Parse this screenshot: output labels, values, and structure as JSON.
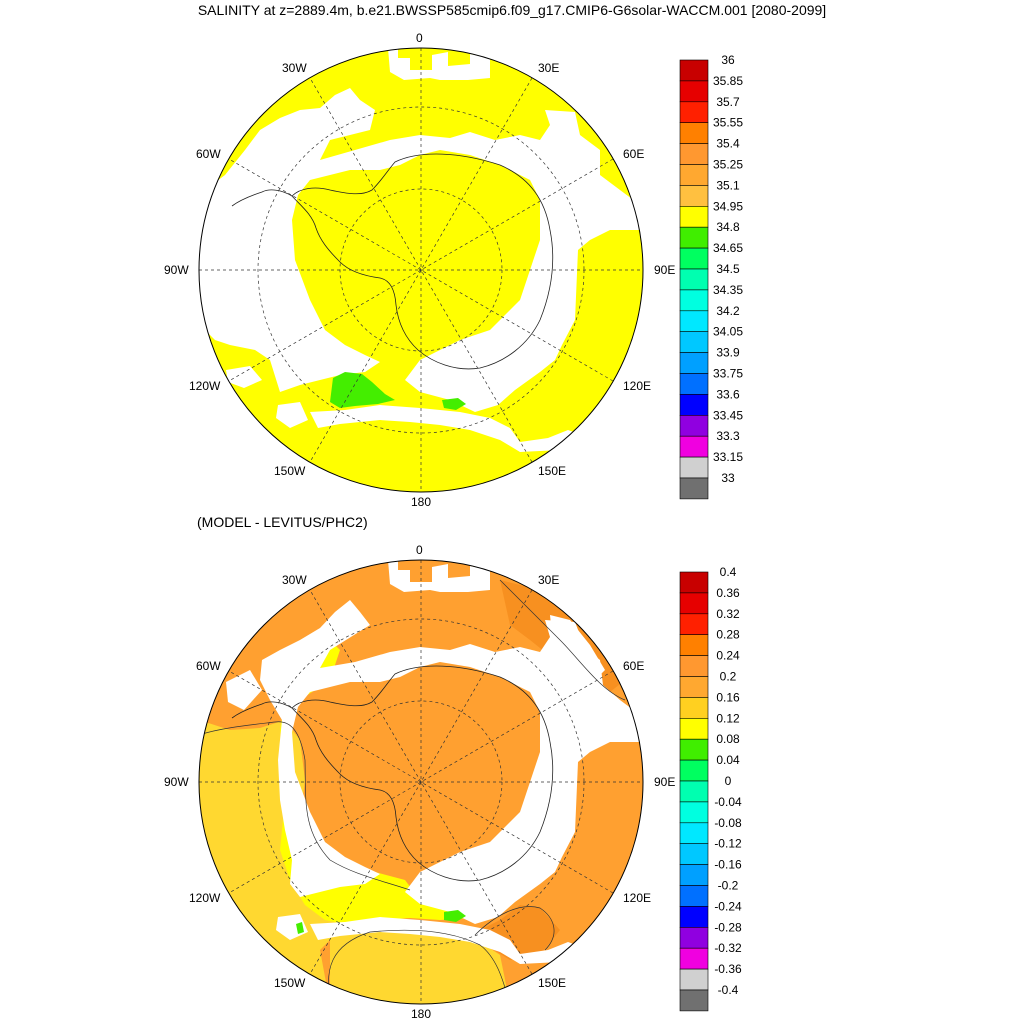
{
  "page_title": "SALINITY at z=2889.4m, b.e21.BWSSP585cmip6.f09_g17.CMIP6-G6solar-WACCM.001 [2080-2099]",
  "panel_bottom_title": "(MODEL - LEVITUS/PHC2)",
  "map_labels": [
    "0",
    "30E",
    "60E",
    "90E",
    "120E",
    "150E",
    "180",
    "150W",
    "120W",
    "90W",
    "60W",
    "30W"
  ],
  "colors": {
    "land": "#ffffff",
    "missing": "#ffffff",
    "yellow": "#ffff00",
    "green": "#44ee00",
    "orange_light": "#ffb030",
    "orange": "#ffa030",
    "orange_dark": "#f79020",
    "gold": "#ffd830"
  },
  "top_colorbar": {
    "labels": [
      "36",
      "35.85",
      "35.7",
      "35.55",
      "35.4",
      "35.25",
      "35.1",
      "34.95",
      "34.8",
      "34.65",
      "34.5",
      "34.35",
      "34.2",
      "34.05",
      "33.9",
      "33.75",
      "33.6",
      "33.45",
      "33.3",
      "33.15",
      "33"
    ],
    "colors": [
      "#c80000",
      "#e60000",
      "#ff2000",
      "#ff8000",
      "#ff9830",
      "#ffa830",
      "#ffc040",
      "#ffff00",
      "#40ee00",
      "#00ff60",
      "#00ffb0",
      "#00ffe0",
      "#00e8ff",
      "#00c8ff",
      "#00a0ff",
      "#0070ff",
      "#0000ff",
      "#9000e0",
      "#f000e0",
      "#d0d0d0",
      "#707070"
    ]
  },
  "bottom_colorbar": {
    "labels": [
      "0.4",
      "0.36",
      "0.32",
      "0.28",
      "0.24",
      "0.2",
      "0.16",
      "0.12",
      "0.08",
      "0.04",
      "0",
      "-0.04",
      "-0.08",
      "-0.12",
      "-0.16",
      "-0.2",
      "-0.24",
      "-0.28",
      "-0.32",
      "-0.36",
      "-0.4"
    ],
    "colors": [
      "#c80000",
      "#e60000",
      "#ff2000",
      "#ff8000",
      "#ff9830",
      "#ffa830",
      "#ffd020",
      "#ffff00",
      "#40ee00",
      "#00ff60",
      "#00ffb0",
      "#00ffe0",
      "#00e8ff",
      "#00c8ff",
      "#00a0ff",
      "#0070ff",
      "#0000ff",
      "#9000e0",
      "#f000e0",
      "#d0d0d0",
      "#707070"
    ]
  }
}
